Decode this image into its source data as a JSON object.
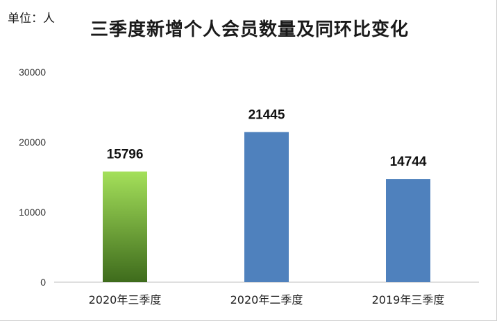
{
  "unit_label": "单位：人",
  "chart_data": {
    "type": "bar",
    "title": "三季度新增个人会员数量及同环比变化",
    "categories": [
      "2020年三季度",
      "2020年二季度",
      "2019年三季度"
    ],
    "values": [
      15796,
      21445,
      14744
    ],
    "data_labels": [
      "15796",
      "21445",
      "14744"
    ],
    "bar_colors": [
      "#7dbf3a",
      "#4f81bd",
      "#4f81bd"
    ],
    "highlight_gradient": [
      "#a4e05a",
      "#3e6b1c"
    ],
    "ylim": [
      0,
      30000
    ],
    "yticks": [
      0,
      10000,
      20000,
      30000
    ],
    "ytick_labels": [
      "0",
      "10000",
      "20000",
      "30000"
    ],
    "xlabel": "",
    "ylabel": "",
    "grid": false,
    "legend": "none"
  }
}
